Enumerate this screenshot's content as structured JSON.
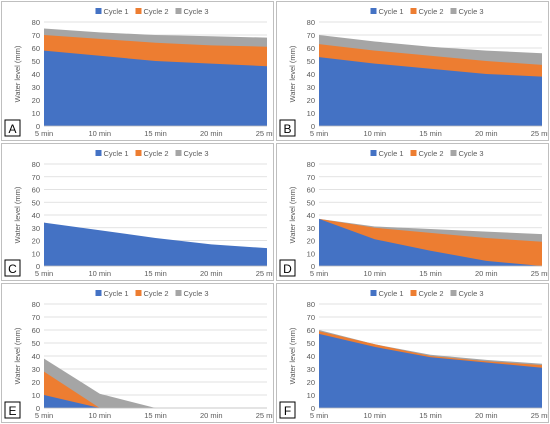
{
  "colors": {
    "cycle1": "#4472C4",
    "cycle2": "#ED7D31",
    "cycle3": "#A5A5A5",
    "grid": "#D9D9D9",
    "text": "#595959"
  },
  "chart_data": [
    {
      "type": "area",
      "panel_label": "A",
      "categories": [
        "5 min",
        "10 min",
        "15 min",
        "20 min",
        "25 min"
      ],
      "ylabel": "Water level (mm)",
      "ylim": [
        0,
        80
      ],
      "yticks": [
        0,
        10,
        20,
        30,
        40,
        50,
        60,
        70,
        80
      ],
      "legend": "top-center",
      "grid": true,
      "series": [
        {
          "name": "Cycle 1",
          "values": [
            58,
            54,
            50,
            48,
            46
          ]
        },
        {
          "name": "Cycle 2",
          "values": [
            70,
            67,
            64,
            62,
            61
          ]
        },
        {
          "name": "Cycle 3",
          "values": [
            75,
            72,
            70,
            69,
            68
          ]
        }
      ]
    },
    {
      "type": "area",
      "panel_label": "B",
      "categories": [
        "5 min",
        "10 min",
        "15 min",
        "20 min",
        "25 min"
      ],
      "ylabel": "Water level (mm)",
      "ylim": [
        0,
        80
      ],
      "yticks": [
        0,
        10,
        20,
        30,
        40,
        50,
        60,
        70,
        80
      ],
      "legend": "top-center",
      "grid": true,
      "series": [
        {
          "name": "Cycle 1",
          "values": [
            53,
            48,
            44,
            40,
            38
          ]
        },
        {
          "name": "Cycle 2",
          "values": [
            63,
            58,
            54,
            50,
            47
          ]
        },
        {
          "name": "Cycle 3",
          "values": [
            70,
            65,
            61,
            58,
            56
          ]
        }
      ]
    },
    {
      "type": "area",
      "panel_label": "C",
      "categories": [
        "5 min",
        "10 min",
        "15 min",
        "20 min",
        "25 min"
      ],
      "ylabel": "Water level (mm)",
      "ylim": [
        0,
        80
      ],
      "yticks": [
        0,
        10,
        20,
        30,
        40,
        50,
        60,
        70,
        80
      ],
      "legend": "top-center",
      "grid": true,
      "series": [
        {
          "name": "Cycle 1",
          "values": [
            34,
            28,
            22,
            17,
            14
          ]
        },
        {
          "name": "Cycle 2",
          "values": [
            34,
            20,
            12,
            6,
            0
          ]
        },
        {
          "name": "Cycle 3",
          "values": [
            28,
            15,
            10,
            4,
            0
          ]
        }
      ]
    },
    {
      "type": "area",
      "panel_label": "D",
      "categories": [
        "5 min",
        "10 min",
        "15 min",
        "20 min",
        "25 min"
      ],
      "ylabel": "Water level (mm)",
      "ylim": [
        0,
        80
      ],
      "yticks": [
        0,
        10,
        20,
        30,
        40,
        50,
        60,
        70,
        80
      ],
      "legend": "top-center",
      "grid": true,
      "series": [
        {
          "name": "Cycle 1",
          "values": [
            37,
            21,
            12,
            4,
            0
          ]
        },
        {
          "name": "Cycle 2",
          "values": [
            37,
            30,
            26,
            22,
            19
          ]
        },
        {
          "name": "Cycle 3",
          "values": [
            37,
            31,
            29,
            27,
            25
          ]
        }
      ]
    },
    {
      "type": "area",
      "panel_label": "E",
      "categories": [
        "5 min",
        "10 min",
        "15 min",
        "20 min",
        "25 min"
      ],
      "ylabel": "Water level (mm)",
      "ylim": [
        0,
        80
      ],
      "yticks": [
        0,
        10,
        20,
        30,
        40,
        50,
        60,
        70,
        80
      ],
      "legend": "top-center",
      "grid": true,
      "series": [
        {
          "name": "Cycle 1",
          "values": [
            10,
            0,
            0,
            0,
            0
          ]
        },
        {
          "name": "Cycle 2",
          "values": [
            28,
            0,
            0,
            0,
            0
          ]
        },
        {
          "name": "Cycle 3",
          "values": [
            38,
            11,
            0,
            0,
            0
          ]
        }
      ]
    },
    {
      "type": "area",
      "panel_label": "F",
      "categories": [
        "5 min",
        "10 min",
        "15 min",
        "20 min",
        "25 min"
      ],
      "ylabel": "Water level (mm)",
      "ylim": [
        0,
        80
      ],
      "yticks": [
        0,
        10,
        20,
        30,
        40,
        50,
        60,
        70,
        80
      ],
      "legend": "top-center",
      "grid": true,
      "series": [
        {
          "name": "Cycle 1",
          "values": [
            57,
            47,
            39,
            35,
            31
          ]
        },
        {
          "name": "Cycle 2",
          "values": [
            59,
            49,
            40,
            36,
            33
          ]
        },
        {
          "name": "Cycle 3",
          "values": [
            60,
            49,
            41,
            37,
            34
          ]
        }
      ]
    }
  ]
}
